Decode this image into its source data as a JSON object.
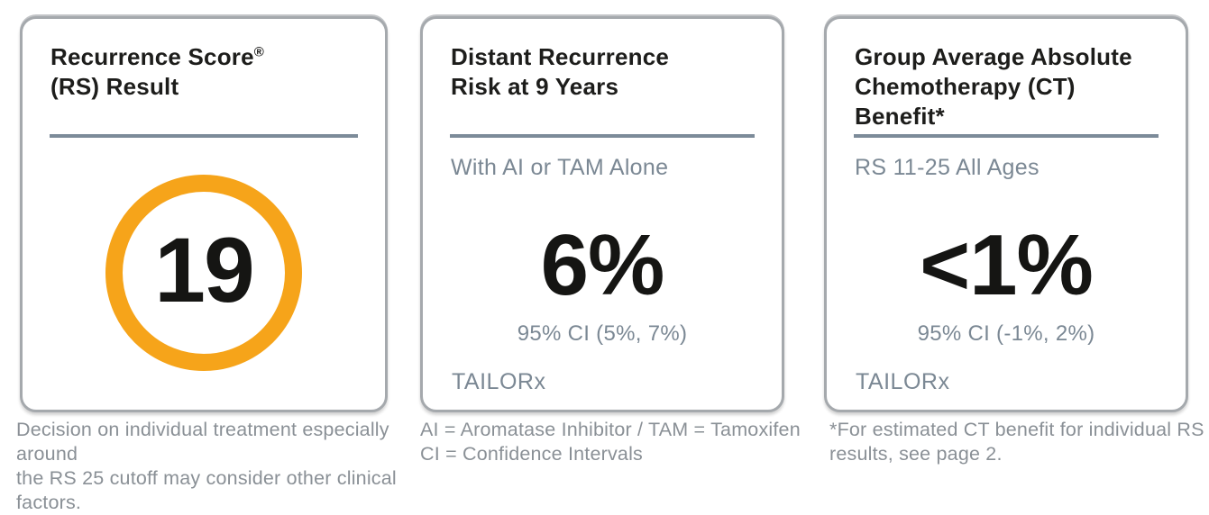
{
  "colors": {
    "ring_orange": "#f6a41a",
    "divider_blue_gray": "#7c8b99",
    "subtitle_gray": "#7b8894",
    "footnote_gray": "#8a9096",
    "title_black": "#1d1d1b",
    "card_border_gray": "#a5a9ad"
  },
  "cards": [
    {
      "title_lines": [
        "Recurrence Score",
        "(RS) Result"
      ],
      "title_sup": "®",
      "score": "19",
      "footnote_lines": [
        "Decision on individual treatment especially around",
        "the RS 25 cutoff may consider other clinical factors."
      ]
    },
    {
      "title_lines": [
        "Distant Recurrence",
        "Risk at 9 Years"
      ],
      "subtitle": "With AI or TAM Alone",
      "value": "6%",
      "ci": "95% CI (5%, 7%)",
      "source": "TAILORx",
      "footnote_lines": [
        "AI = Aromatase Inhibitor / TAM = Tamoxifen",
        "CI = Confidence Intervals"
      ]
    },
    {
      "title_lines": [
        "Group Average Absolute",
        "Chemotherapy (CT)",
        "Benefit*"
      ],
      "subtitle": "RS 11-25 All Ages",
      "value": "<1%",
      "ci": "95% CI (-1%, 2%)",
      "source": "TAILORx",
      "footnote_lines": [
        "*For estimated CT benefit for individual RS",
        "results, see page 2."
      ]
    }
  ]
}
